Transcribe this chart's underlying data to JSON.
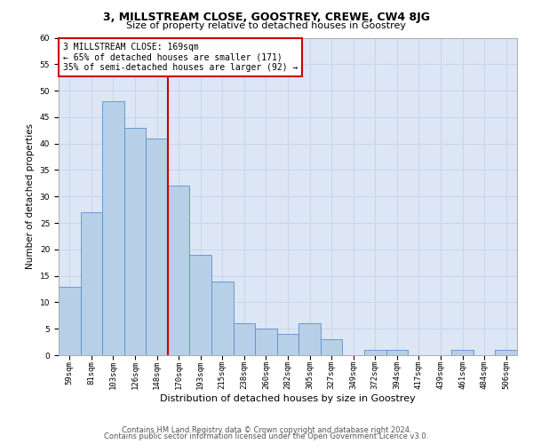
{
  "title": "3, MILLSTREAM CLOSE, GOOSTREY, CREWE, CW4 8JG",
  "subtitle": "Size of property relative to detached houses in Goostrey",
  "xlabel": "Distribution of detached houses by size in Goostrey",
  "ylabel": "Number of detached properties",
  "categories": [
    "59sqm",
    "81sqm",
    "103sqm",
    "126sqm",
    "148sqm",
    "170sqm",
    "193sqm",
    "215sqm",
    "238sqm",
    "260sqm",
    "282sqm",
    "305sqm",
    "327sqm",
    "349sqm",
    "372sqm",
    "394sqm",
    "417sqm",
    "439sqm",
    "461sqm",
    "484sqm",
    "506sqm"
  ],
  "bar_values": [
    13,
    27,
    48,
    43,
    41,
    32,
    19,
    14,
    6,
    5,
    4,
    6,
    3,
    0,
    1,
    1,
    0,
    0,
    1,
    0,
    1
  ],
  "bar_color": "#b8cfe8",
  "bar_edge_color": "#5b8fc9",
  "annotation_line1": "3 MILLSTREAM CLOSE: 169sqm",
  "annotation_line2": "← 65% of detached houses are smaller (171)",
  "annotation_line3": "35% of semi-detached houses are larger (92) →",
  "annotation_box_color": "#ffffff",
  "annotation_box_edge_color": "#cc0000",
  "vline_color": "#cc0000",
  "ylim": [
    0,
    60
  ],
  "yticks": [
    0,
    5,
    10,
    15,
    20,
    25,
    30,
    35,
    40,
    45,
    50,
    55,
    60
  ],
  "grid_color": "#c8d4e8",
  "bg_color": "#dce6f5",
  "footer1": "Contains HM Land Registry data © Crown copyright and database right 2024.",
  "footer2": "Contains public sector information licensed under the Open Government Licence v3.0.",
  "title_fontsize": 9,
  "subtitle_fontsize": 8,
  "xlabel_fontsize": 8,
  "ylabel_fontsize": 7.5,
  "tick_fontsize": 6.5,
  "annotation_fontsize": 7,
  "footer_fontsize": 6
}
